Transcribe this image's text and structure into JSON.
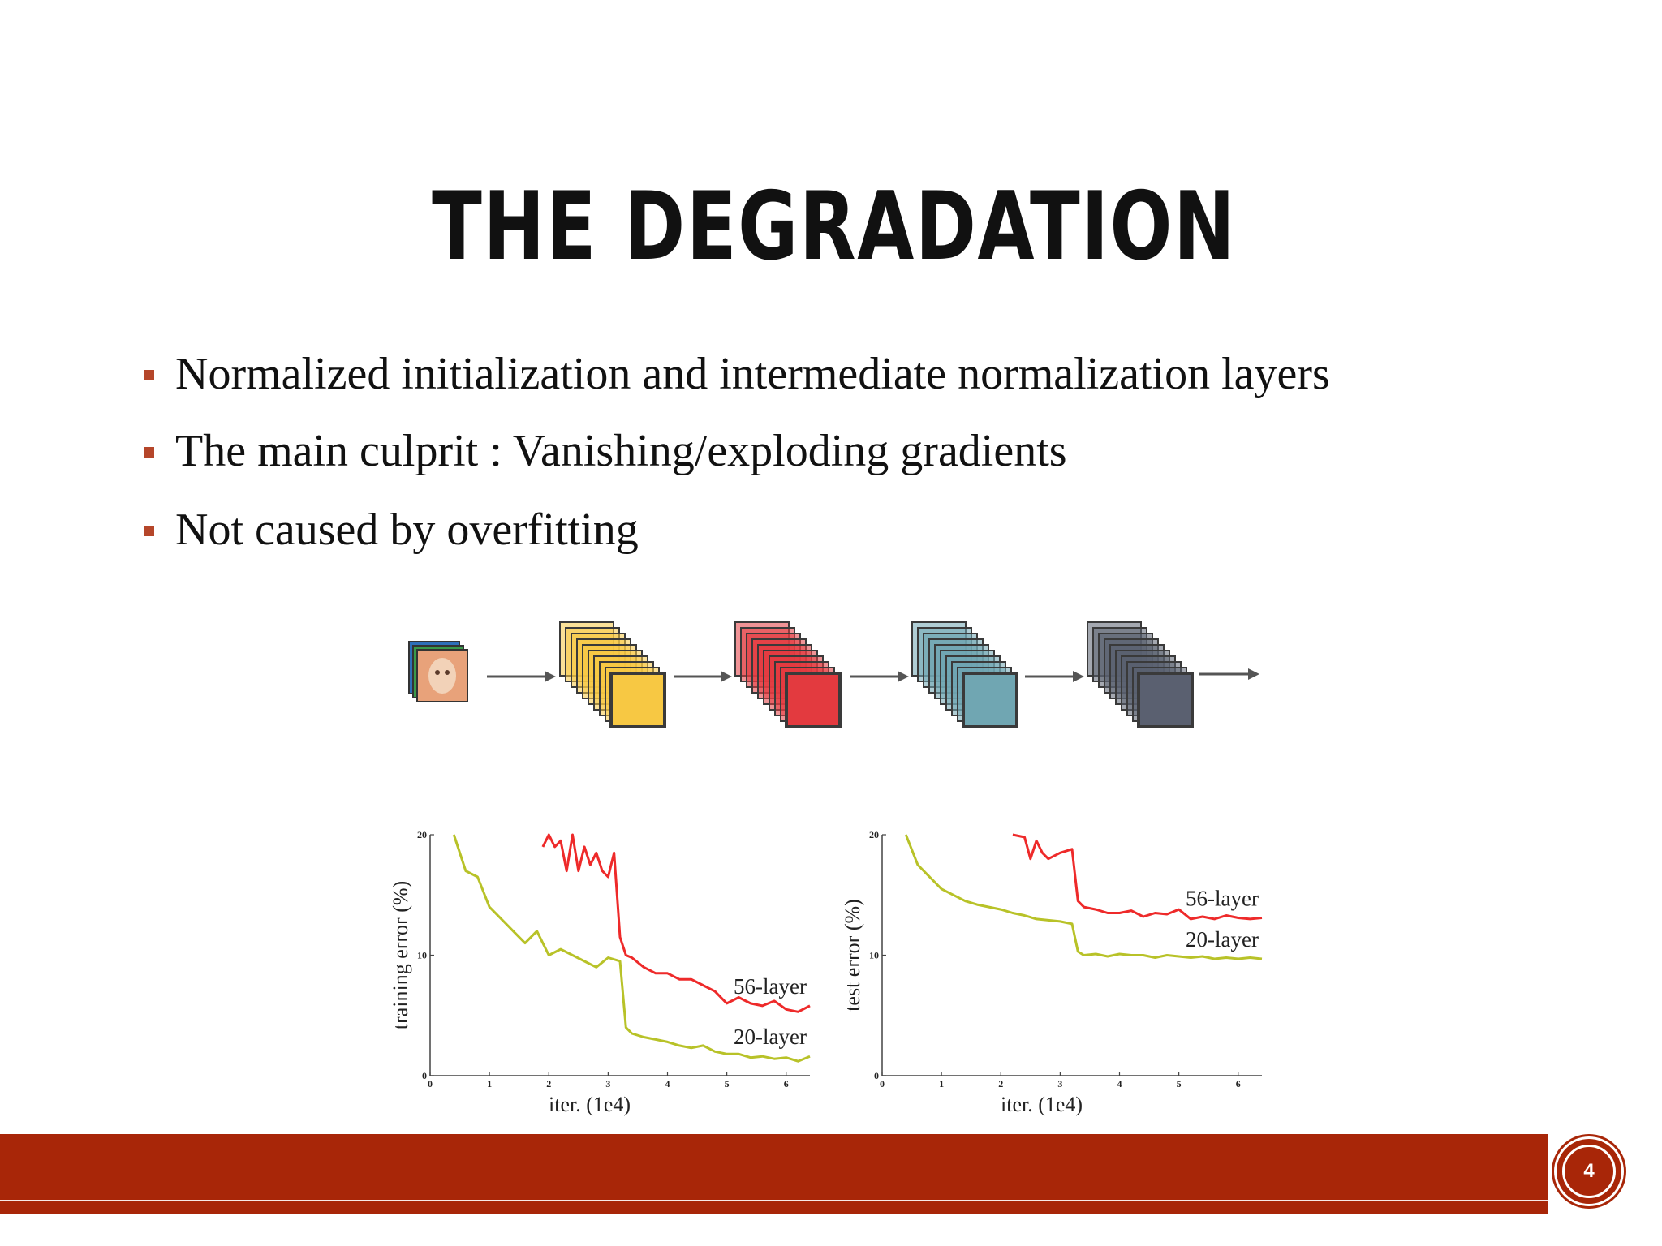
{
  "slide": {
    "title": "THE DEGRADATION",
    "page_number": "4"
  },
  "bullets": [
    "Normalized initialization and intermediate normalization layers",
    "The main culprit : Vanishing/exploding gradients",
    "Not caused by overfitting"
  ],
  "pipeline": {
    "stages": [
      {
        "name": "conv-stack-1",
        "color": "#f7c843"
      },
      {
        "name": "conv-stack-2",
        "color": "#e33a3f"
      },
      {
        "name": "conv-stack-3",
        "color": "#70a6b2"
      },
      {
        "name": "conv-stack-4",
        "color": "#5a6070"
      }
    ]
  },
  "colors": {
    "accent": "#a82608",
    "bullet": "#b5462a",
    "series_56": "#ee2a2a",
    "series_20": "#b8c228"
  },
  "chart_data": [
    {
      "type": "line",
      "xlabel": "iter. (1e4)",
      "ylabel": "training error (%)",
      "xlim": [
        0,
        6.4
      ],
      "ylim": [
        0,
        20
      ],
      "xticks": [
        0,
        1,
        2,
        3,
        4,
        5,
        6
      ],
      "yticks": [
        0,
        10,
        20
      ],
      "series": [
        {
          "name": "56-layer",
          "x": [
            1.9,
            2.0,
            2.1,
            2.2,
            2.3,
            2.4,
            2.5,
            2.6,
            2.7,
            2.8,
            2.9,
            3.0,
            3.1,
            3.2,
            3.3,
            3.4,
            3.6,
            3.8,
            4.0,
            4.2,
            4.4,
            4.6,
            4.8,
            5.0,
            5.2,
            5.4,
            5.6,
            5.8,
            6.0,
            6.2,
            6.4
          ],
          "y": [
            19.0,
            20.0,
            19.0,
            19.5,
            17.0,
            20.0,
            17.0,
            19.0,
            17.5,
            18.5,
            17.0,
            16.5,
            18.5,
            11.5,
            10.0,
            9.8,
            9.0,
            8.5,
            8.5,
            8.0,
            8.0,
            7.5,
            7.0,
            6.0,
            6.5,
            6.0,
            5.8,
            6.2,
            5.5,
            5.3,
            5.8
          ]
        },
        {
          "name": "20-layer",
          "x": [
            0.4,
            0.6,
            0.8,
            1.0,
            1.2,
            1.4,
            1.6,
            1.8,
            2.0,
            2.2,
            2.4,
            2.6,
            2.8,
            3.0,
            3.2,
            3.3,
            3.4,
            3.6,
            3.8,
            4.0,
            4.2,
            4.4,
            4.6,
            4.8,
            5.0,
            5.2,
            5.4,
            5.6,
            5.8,
            6.0,
            6.2,
            6.4
          ],
          "y": [
            20.0,
            17.0,
            16.5,
            14.0,
            13.0,
            12.0,
            11.0,
            12.0,
            10.0,
            10.5,
            10.0,
            9.5,
            9.0,
            9.8,
            9.5,
            4.0,
            3.5,
            3.2,
            3.0,
            2.8,
            2.5,
            2.3,
            2.5,
            2.0,
            1.8,
            1.8,
            1.5,
            1.6,
            1.4,
            1.5,
            1.2,
            1.6
          ]
        }
      ]
    },
    {
      "type": "line",
      "xlabel": "iter. (1e4)",
      "ylabel": "test error (%)",
      "xlim": [
        0,
        6.4
      ],
      "ylim": [
        0,
        20
      ],
      "xticks": [
        0,
        1,
        2,
        3,
        4,
        5,
        6
      ],
      "yticks": [
        0,
        10,
        20
      ],
      "series": [
        {
          "name": "56-layer",
          "x": [
            2.2,
            2.4,
            2.5,
            2.6,
            2.7,
            2.8,
            3.0,
            3.2,
            3.3,
            3.4,
            3.6,
            3.8,
            4.0,
            4.2,
            4.4,
            4.6,
            4.8,
            5.0,
            5.2,
            5.4,
            5.6,
            5.8,
            6.0,
            6.2,
            6.4
          ],
          "y": [
            20.0,
            19.8,
            18.0,
            19.5,
            18.5,
            18.0,
            18.5,
            18.8,
            14.5,
            14.0,
            13.8,
            13.5,
            13.5,
            13.7,
            13.2,
            13.5,
            13.4,
            13.8,
            13.0,
            13.2,
            13.0,
            13.3,
            13.1,
            13.0,
            13.1
          ]
        },
        {
          "name": "20-layer",
          "x": [
            0.4,
            0.6,
            0.8,
            1.0,
            1.2,
            1.4,
            1.6,
            1.8,
            2.0,
            2.2,
            2.4,
            2.6,
            2.8,
            3.0,
            3.2,
            3.3,
            3.4,
            3.6,
            3.8,
            4.0,
            4.2,
            4.4,
            4.6,
            4.8,
            5.0,
            5.2,
            5.4,
            5.6,
            5.8,
            6.0,
            6.2,
            6.4
          ],
          "y": [
            20.0,
            17.5,
            16.5,
            15.5,
            15.0,
            14.5,
            14.2,
            14.0,
            13.8,
            13.5,
            13.3,
            13.0,
            12.9,
            12.8,
            12.6,
            10.3,
            10.0,
            10.1,
            9.9,
            10.1,
            10.0,
            10.0,
            9.8,
            10.0,
            9.9,
            9.8,
            9.9,
            9.7,
            9.8,
            9.7,
            9.8,
            9.7
          ]
        }
      ]
    }
  ]
}
